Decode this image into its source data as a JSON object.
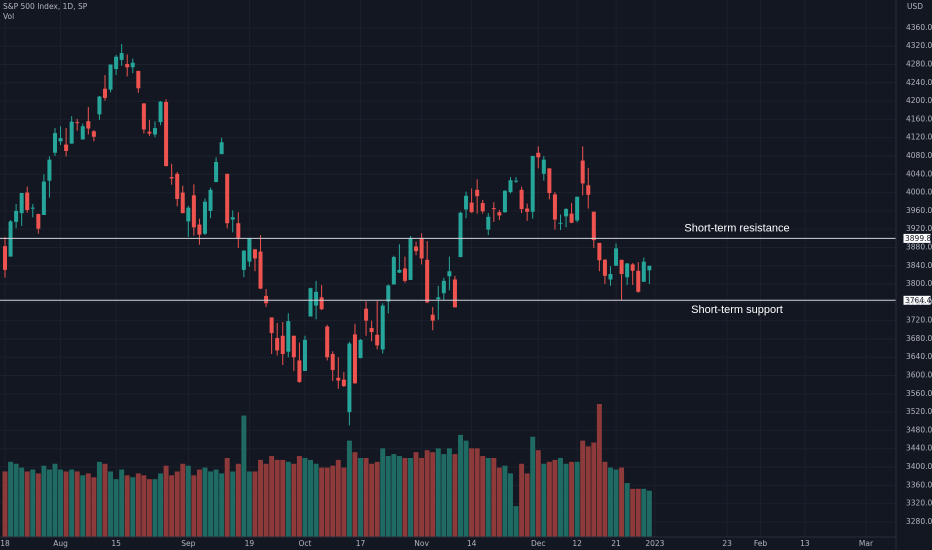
{
  "chart_data": {
    "type": "candlestick",
    "title": "S&P 500 Index, 1D, SP",
    "volume_label": "Vol",
    "currency": "USD",
    "up_color": "#26a69a",
    "down_color": "#ef5350",
    "volume_up_color": "#1f6b64",
    "volume_down_color": "#8f3a3a",
    "grid": true,
    "ylim": [
      3247,
      4421
    ],
    "yticks": [
      {
        "value": 3280,
        "label": "3280.00"
      },
      {
        "value": 3320,
        "label": "3320.00"
      },
      {
        "value": 3360,
        "label": "3360.00"
      },
      {
        "value": 3400,
        "label": "3400.00"
      },
      {
        "value": 3440,
        "label": "3440.00"
      },
      {
        "value": 3480,
        "label": "3480.00"
      },
      {
        "value": 3520,
        "label": "3520.00"
      },
      {
        "value": 3560,
        "label": "3560.00"
      },
      {
        "value": 3600,
        "label": "3600.00"
      },
      {
        "value": 3640,
        "label": "3640.00"
      },
      {
        "value": 3680,
        "label": "3680.00"
      },
      {
        "value": 3720,
        "label": "3720.00"
      },
      {
        "value": 3760,
        "label": "3760.00"
      },
      {
        "value": 3800,
        "label": "3800.00"
      },
      {
        "value": 3840,
        "label": "3840.00"
      },
      {
        "value": 3880,
        "label": "3880.00"
      },
      {
        "value": 3920,
        "label": "3920.00"
      },
      {
        "value": 3960,
        "label": "3960.00"
      },
      {
        "value": 4000,
        "label": "4000.00"
      },
      {
        "value": 4040,
        "label": "4040.00"
      },
      {
        "value": 4080,
        "label": "4080.00"
      },
      {
        "value": 4120,
        "label": "4120.00"
      },
      {
        "value": 4160,
        "label": "4160.00"
      },
      {
        "value": 4200,
        "label": "4200.00"
      },
      {
        "value": 4240,
        "label": "4240.00"
      },
      {
        "value": 4280,
        "label": "4280.00"
      },
      {
        "value": 4320,
        "label": "4320.00"
      },
      {
        "value": 4360,
        "label": "4360.00"
      }
    ],
    "xlim": [
      -0.9,
      160.4
    ],
    "xticks": [
      {
        "value": 0,
        "label": "18"
      },
      {
        "value": 10,
        "label": "Aug"
      },
      {
        "value": 20,
        "label": "15"
      },
      {
        "value": 33,
        "label": "Sep"
      },
      {
        "value": 44,
        "label": "19"
      },
      {
        "value": 54,
        "label": "Oct"
      },
      {
        "value": 64,
        "label": "17"
      },
      {
        "value": 75,
        "label": "Nov"
      },
      {
        "value": 84,
        "label": "14"
      },
      {
        "value": 96,
        "label": "Dec"
      },
      {
        "value": 103,
        "label": "12"
      },
      {
        "value": 110,
        "label": "21"
      },
      {
        "value": 117,
        "label": "2023"
      },
      {
        "value": 130,
        "label": "23"
      },
      {
        "value": 136,
        "label": "Feb"
      },
      {
        "value": 144,
        "label": "13"
      },
      {
        "value": 155,
        "label": "Mar"
      }
    ],
    "levels": [
      {
        "value": 3899.82,
        "annotation": "Short-term resistance",
        "side": "above"
      },
      {
        "value": 3764.49,
        "annotation": "Short-term support",
        "side": "below"
      }
    ],
    "ohlc": [
      [
        3883,
        3903,
        3814,
        3831
      ],
      [
        3860,
        3940,
        3860,
        3937
      ],
      [
        3936,
        3975,
        3922,
        3960
      ],
      [
        3955,
        3999,
        3927,
        3999
      ],
      [
        4000,
        4013,
        3956,
        3962
      ],
      [
        3965,
        3975,
        3946,
        3967
      ],
      [
        3953,
        3954,
        3910,
        3921
      ],
      [
        3951,
        4040,
        3951,
        4024
      ],
      [
        4026,
        4079,
        3989,
        4072
      ],
      [
        4087,
        4141,
        4080,
        4130
      ],
      [
        4112,
        4145,
        4104,
        4119
      ],
      [
        4105,
        4141,
        4079,
        4091
      ],
      [
        4107,
        4167,
        4107,
        4155
      ],
      [
        4154,
        4161,
        4135,
        4152
      ],
      [
        4116,
        4151,
        4116,
        4145
      ],
      [
        4156,
        4187,
        4127,
        4140
      ],
      [
        4134,
        4137,
        4112,
        4122
      ],
      [
        4171,
        4211,
        4159,
        4210
      ],
      [
        4227,
        4257,
        4201,
        4207
      ],
      [
        4225,
        4280,
        4219,
        4280
      ],
      [
        4270,
        4301,
        4257,
        4297
      ],
      [
        4290,
        4325,
        4277,
        4305
      ],
      [
        4281,
        4302,
        4254,
        4274
      ],
      [
        4274,
        4293,
        4261,
        4284
      ],
      [
        4266,
        4266,
        4218,
        4228
      ],
      [
        4195,
        4195,
        4129,
        4138
      ],
      [
        4133,
        4159,
        4124,
        4129
      ],
      [
        4127,
        4156,
        4121,
        4141
      ],
      [
        4154,
        4200,
        4147,
        4199
      ],
      [
        4198,
        4204,
        4057,
        4058
      ],
      [
        4034,
        4063,
        4017,
        4031
      ],
      [
        4041,
        4045,
        3970,
        3986
      ],
      [
        4000,
        4015,
        3955,
        3955
      ],
      [
        3937,
        3971,
        3903,
        3967
      ],
      [
        3994,
        4018,
        3906,
        3924
      ],
      [
        3930,
        3943,
        3886,
        3908
      ],
      [
        3910,
        3987,
        3907,
        3980
      ],
      [
        3960,
        4011,
        3944,
        4006
      ],
      [
        4023,
        4077,
        4023,
        4067
      ],
      [
        4084,
        4120,
        4084,
        4110
      ],
      [
        4041,
        4041,
        3922,
        3933
      ],
      [
        3941,
        3961,
        3913,
        3946
      ],
      [
        3933,
        3957,
        3879,
        3901
      ],
      [
        3831,
        3874,
        3815,
        3873
      ],
      [
        3849,
        3900,
        3838,
        3900
      ],
      [
        3876,
        3876,
        3828,
        3856
      ],
      [
        3871,
        3907,
        3789,
        3790
      ],
      [
        3774,
        3789,
        3750,
        3758
      ],
      [
        3727,
        3727,
        3647,
        3693
      ],
      [
        3682,
        3715,
        3644,
        3655
      ],
      [
        3687,
        3717,
        3623,
        3647
      ],
      [
        3652,
        3736,
        3640,
        3719
      ],
      [
        3687,
        3687,
        3610,
        3640
      ],
      [
        3633,
        3672,
        3584,
        3586
      ],
      [
        3610,
        3687,
        3610,
        3678
      ],
      [
        3729,
        3792,
        3729,
        3791
      ],
      [
        3753,
        3807,
        3723,
        3783
      ],
      [
        3771,
        3798,
        3743,
        3745
      ],
      [
        3707,
        3711,
        3633,
        3640
      ],
      [
        3647,
        3653,
        3588,
        3612
      ],
      [
        3595,
        3640,
        3571,
        3589
      ],
      [
        3591,
        3608,
        3575,
        3577
      ],
      [
        3520,
        3674,
        3491,
        3670
      ],
      [
        3690,
        3713,
        3582,
        3583
      ],
      [
        3638,
        3680,
        3638,
        3678
      ],
      [
        3746,
        3762,
        3687,
        3720
      ],
      [
        3704,
        3720,
        3675,
        3695
      ],
      [
        3689,
        3763,
        3657,
        3666
      ],
      [
        3657,
        3758,
        3648,
        3753
      ],
      [
        3762,
        3799,
        3736,
        3797
      ],
      [
        3799,
        3862,
        3799,
        3859
      ],
      [
        3825,
        3887,
        3824,
        3831
      ],
      [
        3834,
        3860,
        3803,
        3807
      ],
      [
        3809,
        3905,
        3809,
        3901
      ],
      [
        3882,
        3893,
        3863,
        3872
      ],
      [
        3901,
        3911,
        3843,
        3856
      ],
      [
        3853,
        3894,
        3758,
        3760
      ],
      [
        3733,
        3750,
        3699,
        3720
      ],
      [
        3767,
        3796,
        3722,
        3771
      ],
      [
        3780,
        3814,
        3764,
        3807
      ],
      [
        3817,
        3860,
        3786,
        3828
      ],
      [
        3810,
        3818,
        3749,
        3749
      ],
      [
        3859,
        3958,
        3859,
        3956
      ],
      [
        3963,
        4002,
        3944,
        3993
      ],
      [
        3978,
        4009,
        3956,
        3957
      ],
      [
        4006,
        4029,
        3954,
        3992
      ],
      [
        3977,
        3984,
        3954,
        3959
      ],
      [
        3919,
        3955,
        3907,
        3947
      ],
      [
        3966,
        3979,
        3936,
        3965
      ],
      [
        3957,
        3962,
        3940,
        3950
      ],
      [
        3957,
        4005,
        3956,
        4004
      ],
      [
        4001,
        4034,
        3998,
        4027
      ],
      [
        4024,
        4034,
        4021,
        4026
      ],
      [
        4006,
        4013,
        3955,
        3964
      ],
      [
        3965,
        3976,
        3938,
        3958
      ],
      [
        3958,
        4080,
        3943,
        4080
      ],
      [
        4087,
        4101,
        4053,
        4077
      ],
      [
        4041,
        4080,
        4026,
        4072
      ],
      [
        4053,
        4053,
        3985,
        3999
      ],
      [
        3996,
        4001,
        3919,
        3941
      ],
      [
        3934,
        3952,
        3918,
        3934
      ],
      [
        3948,
        3966,
        3924,
        3964
      ],
      [
        3954,
        3977,
        3933,
        3934
      ],
      [
        3939,
        3991,
        3935,
        3991
      ],
      [
        4070,
        4101,
        3994,
        4020
      ],
      [
        4016,
        4054,
        3965,
        3995
      ],
      [
        3958,
        3959,
        3879,
        3896
      ],
      [
        3890,
        3890,
        3828,
        3852
      ],
      [
        3853,
        3855,
        3800,
        3818
      ],
      [
        3810,
        3839,
        3796,
        3822
      ],
      [
        3840,
        3889,
        3840,
        3878
      ],
      [
        3853,
        3853,
        3765,
        3822
      ],
      [
        3815,
        3846,
        3798,
        3845
      ],
      [
        3843,
        3846,
        3798,
        3829
      ],
      [
        3829,
        3848,
        3781,
        3783
      ],
      [
        3805,
        3858,
        3805,
        3849
      ],
      [
        3830,
        3840,
        3800,
        3840
      ]
    ],
    "volume": [
      3.4,
      3.9,
      3.8,
      3.6,
      3.4,
      3.5,
      3.3,
      3.7,
      3.5,
      3.8,
      3.5,
      3.4,
      3.5,
      3.4,
      3.2,
      3.3,
      3.1,
      3.9,
      3.8,
      3.4,
      3.0,
      3.5,
      3.2,
      3.1,
      3.3,
      3.2,
      3.0,
      3.0,
      3.3,
      3.7,
      3.2,
      3.4,
      3.8,
      3.7,
      3.2,
      3.5,
      3.6,
      3.4,
      3.5,
      3.3,
      4.1,
      3.4,
      3.8,
      6.3,
      3.4,
      3.4,
      4.0,
      3.8,
      4.2,
      4.0,
      4.0,
      3.9,
      3.8,
      4.2,
      4.1,
      4.0,
      3.8,
      3.6,
      3.6,
      3.7,
      4.0,
      3.6,
      5.0,
      4.4,
      4.1,
      4.1,
      3.8,
      3.9,
      4.6,
      4.2,
      4.3,
      4.2,
      4.1,
      4.1,
      4.4,
      4.1,
      4.5,
      4.4,
      4.6,
      4.3,
      4.6,
      4.3,
      5.3,
      5.0,
      4.6,
      4.6,
      4.2,
      4.1,
      4.1,
      3.6,
      3.7,
      3.3,
      1.6,
      3.8,
      3.3,
      5.2,
      4.5,
      3.8,
      3.9,
      4.0,
      4.1,
      3.8,
      3.9,
      3.9,
      5.0,
      4.7,
      4.9,
      6.9,
      3.9,
      3.6,
      3.5,
      3.6,
      2.8,
      2.5,
      2.5,
      2.5,
      2.4
    ]
  }
}
